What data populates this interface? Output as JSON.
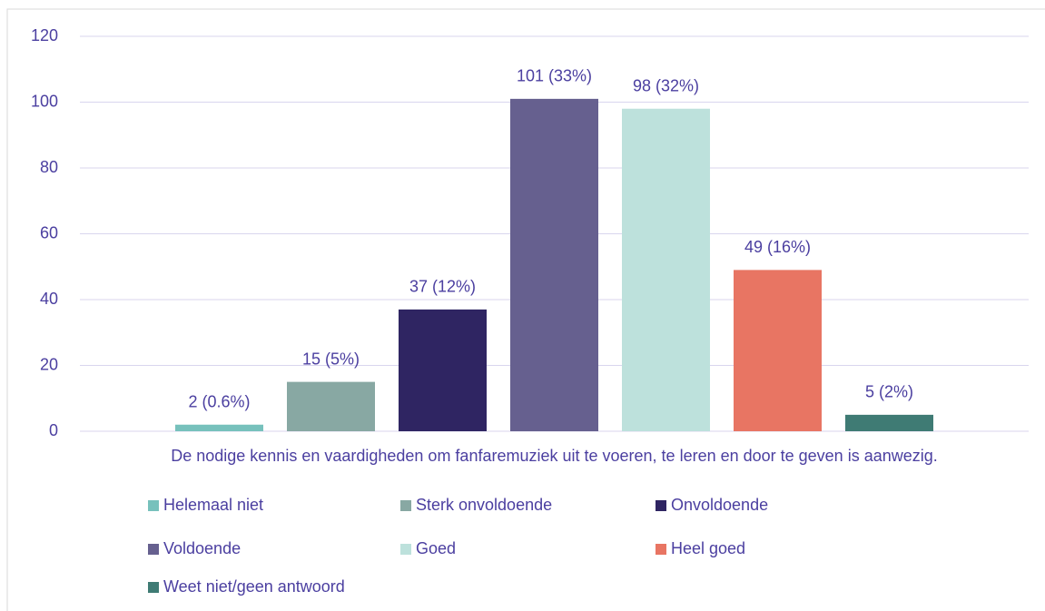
{
  "chart_data": {
    "type": "bar",
    "categories": [
      "De nodige kennis en vaardigheden om fanfaremuziek uit te voeren, te leren en door te geven is aanwezig."
    ],
    "series": [
      {
        "name": "Helemaal niet",
        "color": "#77c1bc",
        "values": [
          2
        ],
        "value_labels": [
          "2 (0.6%)"
        ]
      },
      {
        "name": "Sterk onvoldoende",
        "color": "#88a8a3",
        "values": [
          15
        ],
        "value_labels": [
          "15 (5%)"
        ]
      },
      {
        "name": "Onvoldoende",
        "color": "#2f2562",
        "values": [
          37
        ],
        "value_labels": [
          "37 (12%)"
        ]
      },
      {
        "name": "Voldoende",
        "color": "#66608f",
        "values": [
          101
        ],
        "value_labels": [
          "101 (33%)"
        ]
      },
      {
        "name": "Goed",
        "color": "#bde1dc",
        "values": [
          98
        ],
        "value_labels": [
          "98 (32%)"
        ]
      },
      {
        "name": "Heel goed",
        "color": "#e87563",
        "values": [
          49
        ],
        "value_labels": [
          "49 (16%)"
        ]
      },
      {
        "name": "Weet niet/geen antwoord",
        "color": "#3f7b74",
        "values": [
          5
        ],
        "value_labels": [
          "5 (2%)"
        ]
      }
    ],
    "ylim": [
      0,
      120
    ],
    "yticks": [
      0,
      20,
      40,
      60,
      80,
      100,
      120
    ],
    "grid": true,
    "legend": "bottom"
  }
}
